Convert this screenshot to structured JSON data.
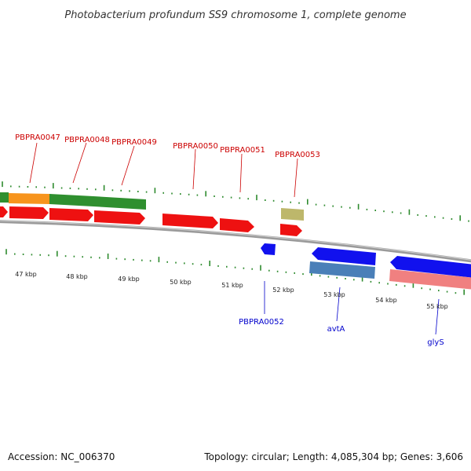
{
  "title": "Photobacterium profundum SS9 chromosome 1, complete genome",
  "footer": {
    "accession": "Accession: NC_006370",
    "summary": "Topology: circular; Length: 4,085,304 bp; Genes: 3,606"
  },
  "colors": {
    "backbone": "#8a8a8a",
    "tick": "#2e8b2e",
    "red_feature": "#ee1111",
    "green_feature": "#2f8f2f",
    "orange_feature": "#f7941d",
    "khaki_feature": "#bdb76b",
    "blue_feature": "#1111ee",
    "steelblue_feature": "#4a7fb8",
    "salmon_feature": "#f08080",
    "red_label": "#cc0000",
    "blue_label": "#0000cc"
  },
  "kbp_labels": [
    "47 kbp",
    "48 kbp",
    "49 kbp",
    "50 kbp",
    "51 kbp",
    "52 kbp",
    "53 kbp",
    "54 kbp",
    "55 kbp"
  ],
  "top_gene_labels": [
    "PBPRA0047",
    "PBPRA0048",
    "PBPRA0049",
    "PBPRA0050",
    "PBPRA0051",
    "PBPRA0053"
  ],
  "bottom_gene_labels": [
    "PBPRA0052",
    "avtA",
    "glyS"
  ]
}
